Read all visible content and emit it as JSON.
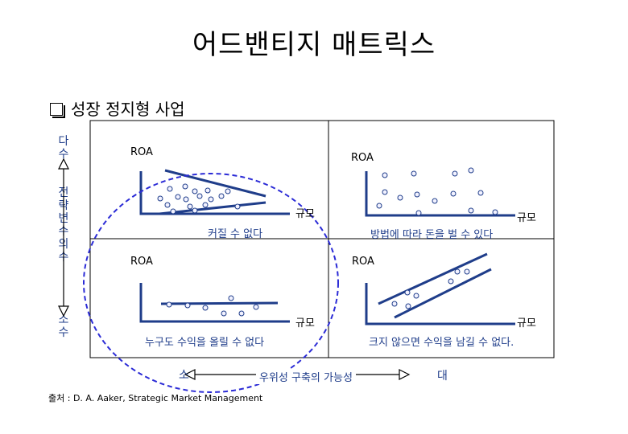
{
  "title": "어드밴티지 매트릭스",
  "subtitle": "성장 정지형 사업",
  "y_axis": {
    "top": "다수",
    "middle": "전략 변수의 수",
    "bottom": "소수"
  },
  "quadrants": {
    "top_left": {
      "y_label": "ROA",
      "x_label": "규모",
      "caption": "커질 수 없다"
    },
    "top_right": {
      "y_label": "ROA",
      "x_label": "규모",
      "caption": "방법에 따라 돈을 벌 수 있다"
    },
    "bottom_left": {
      "y_label": "ROA",
      "x_label": "규모",
      "caption": "누구도 수익을 올릴 수 없다"
    },
    "bottom_right": {
      "y_label": "ROA",
      "x_label": "규모",
      "caption": "크지 않으면 수익을 남길 수 없다."
    }
  },
  "x_axis": {
    "left": "소",
    "middle": "우위성 구축의 가능성",
    "right": "대"
  },
  "source": "출처 : D. A. Aaker, Strategic Market Management",
  "colors": {
    "axis_blue": "#1f3d8a",
    "dot_fill": "#f2f2ff",
    "highlight_oval": "#2b2bd6",
    "title_text": "#000000"
  }
}
